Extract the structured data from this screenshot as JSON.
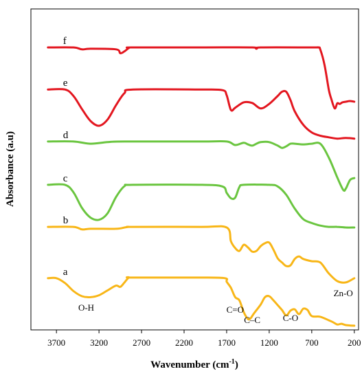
{
  "chart_data": {
    "type": "line",
    "title": "",
    "xlabel": "Wavenumber (cm",
    "xlabel_sup": "-1",
    "xlabel_close": ")",
    "ylabel": "Absorbance (a.u)",
    "x_reversed": true,
    "xlim": [
      4000,
      150
    ],
    "ylim": [
      0,
      100
    ],
    "grid": false,
    "y_ticks_labeled": false,
    "x_ticks": [
      3700,
      3200,
      2700,
      2200,
      1700,
      1200,
      700,
      200
    ],
    "x_tick_labels": [
      "3700",
      "3200",
      "2700",
      "2200",
      "1700",
      "1200",
      "700",
      "200"
    ],
    "series": [
      {
        "name": "f",
        "color": "#e3161f",
        "x": [
          3800,
          3500,
          3400,
          3300,
          3000,
          2950,
          2900,
          2850,
          2800,
          2000,
          1400,
          1350,
          1300,
          700,
          620,
          600,
          550,
          500,
          470,
          430,
          400,
          370,
          340,
          300,
          250,
          200
        ],
        "y": [
          88.0,
          88.0,
          87.4,
          87.6,
          87.4,
          86.2,
          86.8,
          87.8,
          88.0,
          88.0,
          88.0,
          87.6,
          88.0,
          88.0,
          88.0,
          87.4,
          82.6,
          74.9,
          71.9,
          69.0,
          70.6,
          70.4,
          70.9,
          71.1,
          71.3,
          71.1
        ]
      },
      {
        "name": "e",
        "color": "#e3161f",
        "x": [
          3800,
          3600,
          3500,
          3400,
          3300,
          3200,
          3100,
          3000,
          2900,
          2800,
          2000,
          1750,
          1700,
          1650,
          1600,
          1500,
          1400,
          1300,
          1200,
          1100,
          1050,
          1000,
          950,
          900,
          800,
          700,
          600,
          500,
          400,
          300,
          200
        ],
        "y": [
          74.9,
          74.9,
          72.9,
          68.8,
          65.1,
          63.6,
          65.5,
          70.0,
          73.8,
          74.9,
          74.9,
          74.7,
          73.1,
          68.5,
          69.2,
          70.9,
          70.7,
          69.0,
          70.4,
          72.9,
          74.2,
          74.2,
          71.6,
          68.1,
          63.9,
          61.5,
          60.5,
          60.0,
          59.6,
          59.8,
          59.6
        ]
      },
      {
        "name": "d",
        "color": "#6ac53f",
        "x": [
          3800,
          3500,
          3300,
          3100,
          2900,
          2000,
          1700,
          1600,
          1500,
          1450,
          1400,
          1350,
          1300,
          1200,
          1100,
          1050,
          1000,
          950,
          900,
          800,
          700,
          600,
          500,
          400,
          330,
          300,
          250,
          200
        ],
        "y": [
          58.7,
          58.7,
          58.0,
          58.5,
          58.7,
          58.7,
          58.7,
          57.6,
          58.3,
          57.8,
          57.4,
          58.0,
          58.5,
          58.5,
          57.4,
          56.7,
          57.2,
          58.0,
          58.0,
          57.8,
          58.0,
          58.0,
          53.7,
          47.5,
          43.6,
          44.0,
          46.7,
          47.3
        ]
      },
      {
        "name": "c",
        "color": "#6ac53f",
        "x": [
          3800,
          3600,
          3500,
          3400,
          3300,
          3200,
          3100,
          3000,
          2900,
          2800,
          2000,
          1750,
          1700,
          1650,
          1600,
          1550,
          1500,
          1200,
          1100,
          1000,
          900,
          800,
          700,
          600,
          500,
          400,
          300,
          200
        ],
        "y": [
          45.2,
          45.2,
          42.9,
          38.0,
          35.0,
          34.3,
          36.3,
          41.4,
          44.8,
          45.2,
          45.2,
          44.7,
          42.7,
          41.0,
          41.2,
          44.5,
          45.2,
          45.2,
          44.7,
          42.1,
          37.8,
          34.5,
          33.3,
          32.5,
          32.1,
          32.1,
          31.9,
          31.9
        ]
      },
      {
        "name": "b",
        "color": "#f8b617",
        "x": [
          3800,
          3500,
          3400,
          3300,
          3000,
          2900,
          2850,
          2800,
          2000,
          1700,
          1650,
          1600,
          1550,
          1500,
          1450,
          1400,
          1350,
          1300,
          1250,
          1200,
          1150,
          1100,
          1050,
          1000,
          950,
          900,
          850,
          800,
          700,
          600,
          500,
          400,
          300,
          200
        ],
        "y": [
          32.1,
          32.1,
          31.3,
          31.5,
          31.5,
          31.9,
          32.1,
          32.1,
          32.1,
          31.9,
          27.6,
          25.5,
          24.6,
          26.5,
          25.7,
          24.4,
          24.6,
          26.1,
          27.0,
          27.2,
          25.0,
          22.3,
          21.0,
          19.9,
          20.1,
          22.1,
          22.9,
          22.1,
          21.4,
          21.0,
          17.6,
          15.2,
          14.8,
          16.1
        ]
      },
      {
        "name": "a",
        "color": "#f8b617",
        "x": [
          3800,
          3700,
          3600,
          3500,
          3400,
          3300,
          3200,
          3100,
          3000,
          2950,
          2900,
          2850,
          2800,
          2000,
          1720,
          1700,
          1650,
          1600,
          1550,
          1500,
          1450,
          1420,
          1380,
          1300,
          1250,
          1200,
          1150,
          1100,
          1050,
          1000,
          950,
          900,
          850,
          800,
          750,
          700,
          600,
          500,
          450,
          400,
          350,
          300,
          200
        ],
        "y": [
          16.1,
          16.1,
          14.6,
          12.1,
          10.5,
          10.2,
          10.8,
          12.3,
          13.8,
          13.4,
          14.8,
          16.3,
          16.3,
          16.3,
          16.1,
          15.0,
          13.1,
          10.2,
          9.2,
          5.6,
          3.4,
          3.6,
          5.1,
          7.9,
          10.2,
          10.5,
          9.2,
          7.7,
          6.2,
          4.5,
          6.0,
          6.4,
          4.9,
          6.6,
          6.2,
          4.3,
          4.1,
          3.0,
          2.4,
          1.7,
          1.9,
          1.5,
          1.3
        ]
      }
    ],
    "annotations": [
      {
        "text": "O-H",
        "x": 3350,
        "y": 6.0
      },
      {
        "text": "C=O",
        "x": 1600,
        "y": 5.4
      },
      {
        "text": "C–C",
        "x": 1400,
        "y": 2.1
      },
      {
        "text": "C-O",
        "x": 950,
        "y": 2.8
      },
      {
        "text": "Zn-O",
        "x": 330,
        "y": 10.5
      }
    ]
  }
}
